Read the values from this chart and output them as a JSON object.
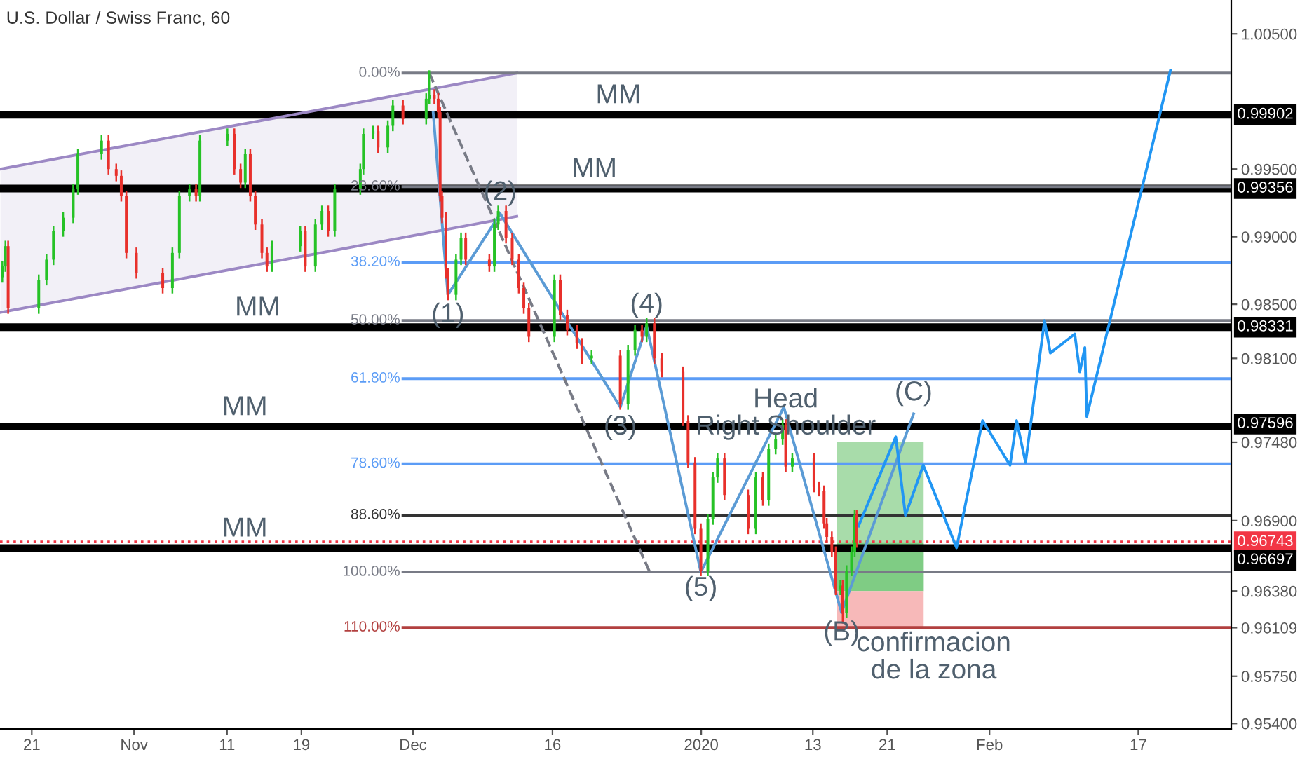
{
  "chart_data": {
    "type": "candlestick",
    "title": "U.S. Dollar / Swiss Franc, 60",
    "grid": false,
    "xlim": [
      "2019-10-17T14:00",
      "2020-02-27"
    ],
    "ylim": [
      0.9536,
      1.0075
    ],
    "xticks": [
      {
        "value": "2019-10-21",
        "label": "21"
      },
      {
        "value": "2019-11-01",
        "label": "Nov"
      },
      {
        "value": "2019-11-11",
        "label": "11"
      },
      {
        "value": "2019-11-19",
        "label": "19"
      },
      {
        "value": "2019-12-01",
        "label": "Dec"
      },
      {
        "value": "2019-12-16",
        "label": "16"
      },
      {
        "value": "2020-01-01",
        "label": "2020"
      },
      {
        "value": "2020-01-13",
        "label": "13"
      },
      {
        "value": "2020-01-21",
        "label": "21"
      },
      {
        "value": "2020-02-01",
        "label": "Feb"
      },
      {
        "value": "2020-02-17",
        "label": "17"
      }
    ],
    "yticks": [
      {
        "value": 1.005,
        "label": "1.00500"
      },
      {
        "value": 0.995,
        "label": "0.99500"
      },
      {
        "value": 0.99,
        "label": "0.99000"
      },
      {
        "value": 0.985,
        "label": "0.98500"
      },
      {
        "value": 0.981,
        "label": "0.98100"
      },
      {
        "value": 0.9748,
        "label": "0.97480"
      },
      {
        "value": 0.969,
        "label": "0.96900"
      },
      {
        "value": 0.9638,
        "label": "0.96380"
      },
      {
        "value": 0.96109,
        "label": "0.96109"
      },
      {
        "value": 0.9575,
        "label": "0.95750"
      },
      {
        "value": 0.954,
        "label": "0.95400"
      }
    ],
    "x": [
      "2019-10-17T20:00",
      "2019-10-18T04:00",
      "2019-10-18T11:00",
      "2019-10-21T18:00",
      "2019-10-22T14:00",
      "2019-10-23T08:00",
      "2019-10-24T09:00",
      "2019-10-25T11:00",
      "2019-10-25T23:00",
      "2019-10-28T12:00",
      "2019-10-29T06:00",
      "2019-10-30T02:00",
      "2019-10-30T15:00",
      "2019-10-31T04:00",
      "2019-11-01T06:00",
      "2019-11-04T02:00",
      "2019-11-05T03:00",
      "2019-11-05T21:00",
      "2019-11-06T23:00",
      "2019-11-07T16:00",
      "2019-11-08T02:00",
      "2019-11-11T01:00",
      "2019-11-11T19:00",
      "2019-11-12T11:00",
      "2019-11-12T23:00",
      "2019-11-13T12:00",
      "2019-11-14T01:00",
      "2019-11-14T18:00",
      "2019-11-15T07:00",
      "2019-11-15T20:00",
      "2019-11-18T21:00",
      "2019-11-19T10:00",
      "2019-11-20T12:00",
      "2019-11-21T05:00",
      "2019-11-21T21:00",
      "2019-11-22T14:00",
      "2019-11-25T08:00",
      "2019-11-25T16:00",
      "2019-11-26T17:00",
      "2019-11-27T06:00",
      "2019-11-28T07:00",
      "2019-11-28T20:00",
      "2019-11-29T22:00",
      "2019-12-02T10:00",
      "2019-12-02T18:00",
      "2019-12-03T07:00",
      "2019-12-03T17:00",
      "2019-12-03T22:00",
      "2019-12-04T03:00",
      "2019-12-04T13:00",
      "2019-12-04T18:00",
      "2019-12-05T15:00",
      "2019-12-06T04:00",
      "2019-12-06T16:00",
      "2019-12-09T05:00",
      "2019-12-09T18:00",
      "2019-12-10T04:00",
      "2019-12-11T00:00",
      "2019-12-11T16:00",
      "2019-12-12T09:00",
      "2019-12-12T22:00",
      "2019-12-13T11:00",
      "2019-12-16T05:00",
      "2019-12-16T20:00",
      "2019-12-17T14:00",
      "2019-12-18T15:00",
      "2019-12-19T04:00",
      "2019-12-20T05:00",
      "2019-12-23T07:00",
      "2019-12-24T03:00",
      "2019-12-24T21:00",
      "2019-12-25T15:00",
      "2019-12-26T03:00",
      "2019-12-26T23:00",
      "2019-12-27T18:00",
      "2019-12-30T01:00",
      "2019-12-30T14:00",
      "2019-12-31T08:00",
      "2019-12-31T23:00",
      "2020-01-01T17:00",
      "2020-01-02T06:00",
      "2020-01-02T18:00",
      "2020-01-03T12:00",
      "2020-01-06T01:00",
      "2020-01-06T21:00",
      "2020-01-07T15:00",
      "2020-01-08T06:00",
      "2020-01-09T00:00",
      "2020-01-09T18:00",
      "2020-01-10T02:00",
      "2020-01-10T19:00",
      "2020-01-13T03:00",
      "2020-01-13T16:00",
      "2020-01-14T05:00",
      "2020-01-14T12:00",
      "2020-01-15T01:00",
      "2020-01-15T11:00",
      "2020-01-15T23:00",
      "2020-01-16T05:00",
      "2020-01-16T15:00",
      "2020-01-17T04:00",
      "2020-01-17T12:00",
      "2020-01-17T17:00"
    ],
    "ohlc": [
      [
        0.987,
        0.9882,
        0.9866,
        0.9878
      ],
      [
        0.9878,
        0.9897,
        0.9874,
        0.9893
      ],
      [
        0.9893,
        0.9897,
        0.9843,
        0.9847
      ],
      [
        0.9847,
        0.9872,
        0.9843,
        0.9868
      ],
      [
        0.9868,
        0.9887,
        0.9864,
        0.9883
      ],
      [
        0.9883,
        0.9908,
        0.9879,
        0.9904
      ],
      [
        0.9904,
        0.9918,
        0.99,
        0.9914
      ],
      [
        0.9914,
        0.9939,
        0.991,
        0.9935
      ],
      [
        0.9935,
        0.9965,
        0.9931,
        0.9961
      ],
      [
        0.9961,
        0.9975,
        0.9957,
        0.9971
      ],
      [
        0.9971,
        0.9975,
        0.9946,
        0.995
      ],
      [
        0.995,
        0.9954,
        0.9941,
        0.9945
      ],
      [
        0.9945,
        0.9949,
        0.9926,
        0.993
      ],
      [
        0.993,
        0.9934,
        0.9884,
        0.9888
      ],
      [
        0.9888,
        0.9892,
        0.9869,
        0.9873
      ],
      [
        0.9873,
        0.9877,
        0.9858,
        0.9862
      ],
      [
        0.9862,
        0.9892,
        0.9858,
        0.9888
      ],
      [
        0.9888,
        0.9934,
        0.9884,
        0.993
      ],
      [
        0.993,
        0.9939,
        0.9926,
        0.9935
      ],
      [
        0.9935,
        0.9939,
        0.9926,
        0.993
      ],
      [
        0.993,
        0.9975,
        0.9926,
        0.9971
      ],
      [
        0.9971,
        0.998,
        0.9967,
        0.9976
      ],
      [
        0.9976,
        0.998,
        0.9946,
        0.995
      ],
      [
        0.995,
        0.9954,
        0.9936,
        0.994
      ],
      [
        0.994,
        0.9965,
        0.9936,
        0.9961
      ],
      [
        0.9961,
        0.9965,
        0.9926,
        0.993
      ],
      [
        0.993,
        0.9934,
        0.9905,
        0.9909
      ],
      [
        0.9909,
        0.9913,
        0.9884,
        0.9888
      ],
      [
        0.9888,
        0.9892,
        0.9874,
        0.9878
      ],
      [
        0.9878,
        0.9897,
        0.9874,
        0.9893
      ],
      [
        0.9893,
        0.9908,
        0.9889,
        0.9904
      ],
      [
        0.9904,
        0.9908,
        0.9874,
        0.9878
      ],
      [
        0.9878,
        0.9913,
        0.9874,
        0.9909
      ],
      [
        0.9909,
        0.9923,
        0.9905,
        0.9919
      ],
      [
        0.9919,
        0.9923,
        0.99,
        0.9904
      ],
      [
        0.9904,
        0.9939,
        0.99,
        0.9935
      ],
      [
        0.9935,
        0.9954,
        0.9931,
        0.995
      ],
      [
        0.995,
        0.998,
        0.9946,
        0.9976
      ],
      [
        0.9976,
        0.9982,
        0.9972,
        0.9978
      ],
      [
        0.9978,
        0.9982,
        0.9962,
        0.9966
      ],
      [
        0.9966,
        0.9986,
        0.9962,
        0.9982
      ],
      [
        0.9982,
        1.0001,
        0.9978,
        0.9997
      ],
      [
        0.9997,
        1.0001,
        0.9983,
        0.9987
      ],
      [
        0.9987,
        1.0006,
        0.9983,
        1.0002
      ],
      [
        1.0002,
        1.0023,
        0.9998,
        1.0005
      ],
      [
        1.0005,
        1.0009,
        0.9998,
        1.0002
      ],
      [
        1.0002,
        1.0006,
        0.9988,
        0.9992
      ],
      [
        0.9992,
        0.9996,
        0.9926,
        0.993
      ],
      [
        0.993,
        0.9934,
        0.991,
        0.9914
      ],
      [
        0.9914,
        0.9918,
        0.9869,
        0.9873
      ],
      [
        0.9873,
        0.9877,
        0.9853,
        0.9857
      ],
      [
        0.9857,
        0.9887,
        0.9853,
        0.9883
      ],
      [
        0.9883,
        0.9903,
        0.9879,
        0.9899
      ],
      [
        0.9899,
        0.9903,
        0.9879,
        0.9883
      ],
      [
        0.9883,
        0.9887,
        0.9874,
        0.9878
      ],
      [
        0.9878,
        0.9913,
        0.9874,
        0.9909
      ],
      [
        0.9909,
        0.9923,
        0.9905,
        0.9919
      ],
      [
        0.9919,
        0.9923,
        0.9895,
        0.9899
      ],
      [
        0.9899,
        0.9903,
        0.9879,
        0.9883
      ],
      [
        0.9883,
        0.9887,
        0.9858,
        0.9862
      ],
      [
        0.9862,
        0.9866,
        0.9843,
        0.9847
      ],
      [
        0.9847,
        0.9851,
        0.9822,
        0.9826
      ],
      [
        0.9826,
        0.9872,
        0.9822,
        0.9868
      ],
      [
        0.9868,
        0.9872,
        0.9838,
        0.9842
      ],
      [
        0.9842,
        0.9846,
        0.9827,
        0.9831
      ],
      [
        0.9831,
        0.9835,
        0.9817,
        0.9821
      ],
      [
        0.9821,
        0.9825,
        0.9806,
        0.981
      ],
      [
        0.981,
        0.9816,
        0.9806,
        0.9812
      ],
      [
        0.9812,
        0.9816,
        0.9772,
        0.9776
      ],
      [
        0.9776,
        0.982,
        0.9772,
        0.9816
      ],
      [
        0.9816,
        0.9835,
        0.9812,
        0.9831
      ],
      [
        0.9831,
        0.9835,
        0.9822,
        0.9826
      ],
      [
        0.9826,
        0.984,
        0.9822,
        0.9836
      ],
      [
        0.9836,
        0.984,
        0.9806,
        0.981
      ],
      [
        0.981,
        0.9814,
        0.9796,
        0.98
      ],
      [
        0.98,
        0.9804,
        0.976,
        0.9764
      ],
      [
        0.9764,
        0.9768,
        0.9729,
        0.9733
      ],
      [
        0.9733,
        0.9737,
        0.968,
        0.9684
      ],
      [
        0.9684,
        0.9688,
        0.9649,
        0.9653
      ],
      [
        0.9653,
        0.9695,
        0.9649,
        0.9691
      ],
      [
        0.9691,
        0.9726,
        0.9687,
        0.9722
      ],
      [
        0.9722,
        0.974,
        0.9718,
        0.9736
      ],
      [
        0.9736,
        0.974,
        0.9705,
        0.9709
      ],
      [
        0.9709,
        0.9713,
        0.968,
        0.9684
      ],
      [
        0.9684,
        0.9726,
        0.968,
        0.9722
      ],
      [
        0.9722,
        0.9726,
        0.9701,
        0.9705
      ],
      [
        0.9705,
        0.9747,
        0.9701,
        0.9743
      ],
      [
        0.9743,
        0.9754,
        0.9739,
        0.975
      ],
      [
        0.975,
        0.9765,
        0.9746,
        0.9761
      ],
      [
        0.9761,
        0.9765,
        0.9726,
        0.973
      ],
      [
        0.973,
        0.974,
        0.9726,
        0.9736
      ],
      [
        0.9736,
        0.974,
        0.9711,
        0.9715
      ],
      [
        0.9715,
        0.9719,
        0.9708,
        0.9712
      ],
      [
        0.9712,
        0.9716,
        0.9684,
        0.9688
      ],
      [
        0.9688,
        0.9692,
        0.9674,
        0.9678
      ],
      [
        0.9678,
        0.9682,
        0.9663,
        0.9667
      ],
      [
        0.9667,
        0.9671,
        0.9635,
        0.9639
      ],
      [
        0.9639,
        0.9646,
        0.9635,
        0.9642
      ],
      [
        0.9642,
        0.9646,
        0.9614,
        0.9622
      ],
      [
        0.9622,
        0.9657,
        0.9618,
        0.9653
      ],
      [
        0.9653,
        0.9671,
        0.9649,
        0.9667
      ],
      [
        0.9667,
        0.9698,
        0.9663,
        0.9694
      ],
      [
        0.9694,
        0.9698,
        0.967,
        0.9674
      ]
    ],
    "colors": [
      "#26c226",
      "#26c226",
      "#e8302b",
      "#26c226",
      "#26c226",
      "#26c226",
      "#26c226",
      "#26c226",
      "#26c226",
      "#26c226",
      "#e8302b",
      "#e8302b",
      "#e8302b",
      "#e8302b",
      "#e8302b",
      "#e8302b",
      "#26c226",
      "#26c226",
      "#26c226",
      "#e8302b",
      "#26c226",
      "#26c226",
      "#e8302b",
      "#e8302b",
      "#26c226",
      "#e8302b",
      "#e8302b",
      "#e8302b",
      "#e8302b",
      "#26c226",
      "#26c226",
      "#e8302b",
      "#26c226",
      "#26c226",
      "#e8302b",
      "#26c226",
      "#26c226",
      "#26c226",
      "#26c226",
      "#e8302b",
      "#26c226",
      "#26c226",
      "#e8302b",
      "#26c226",
      "#26c226",
      "#e8302b",
      "#e8302b",
      "#e8302b",
      "#e8302b",
      "#e8302b",
      "#e8302b",
      "#26c226",
      "#26c226",
      "#e8302b",
      "#e8302b",
      "#26c226",
      "#26c226",
      "#e8302b",
      "#e8302b",
      "#e8302b",
      "#e8302b",
      "#e8302b",
      "#26c226",
      "#e8302b",
      "#e8302b",
      "#e8302b",
      "#e8302b",
      "#26c226",
      "#e8302b",
      "#26c226",
      "#26c226",
      "#e8302b",
      "#26c226",
      "#e8302b",
      "#e8302b",
      "#e8302b",
      "#e8302b",
      "#e8302b",
      "#e8302b",
      "#26c226",
      "#26c226",
      "#26c226",
      "#e8302b",
      "#e8302b",
      "#26c226",
      "#e8302b",
      "#26c226",
      "#26c226",
      "#26c226",
      "#e8302b",
      "#26c226",
      "#e8302b",
      "#e8302b",
      "#e8302b",
      "#e8302b",
      "#e8302b",
      "#e8302b",
      "#26c226",
      "#e8302b",
      "#26c226",
      "#26c226",
      "#26c226",
      "#e8302b"
    ],
    "series": [
      {
        "type": "line",
        "color": "#9c88c4",
        "x": [
          "2019-10-17T15:00",
          "2019-12-12T04:00"
        ],
        "values": [
          0.995,
          1.0021
        ],
        "lower": [
          0.9844,
          0.9915
        ],
        "upper": [
          0.995,
          1.0021
        ]
      },
      {
        "type": "line",
        "color": "#9c88c4",
        "x": [
          "2019-10-17T15:00",
          "2019-12-12T04:00"
        ],
        "values": [
          0.9844,
          0.9915
        ]
      },
      {
        "type": "bar",
        "color": "#a8dcaa",
        "x": [
          "2020-01-20T06:00"
        ],
        "base": [
          0.9638
        ],
        "values": [
          0.011
        ]
      },
      {
        "type": "bar",
        "color": "#7fcc84",
        "x": [
          "2020-01-20T06:00"
        ],
        "base": [
          0.9638
        ],
        "values": [
          0.0036
        ]
      },
      {
        "type": "bar",
        "color": "#f7b9b9",
        "x": [
          "2020-01-20T06:00"
        ],
        "base": [
          0.9611
        ],
        "values": [
          0.0027
        ]
      },
      {
        "type": "line",
        "name": "0.00%",
        "color": "#787b86",
        "x": [
          "2019-11-29T22:00",
          "2020-02-27"
        ],
        "values": [
          1.0021,
          1.0021
        ]
      },
      {
        "type": "line",
        "name": "23.60%",
        "color": "#787b86",
        "x": [
          "2019-11-29T22:00",
          "2020-02-27"
        ],
        "values": [
          0.9937,
          0.9937
        ]
      },
      {
        "type": "line",
        "name": "38.20%",
        "color": "#5b9cf6",
        "x": [
          "2019-11-29T22:00",
          "2020-02-27"
        ],
        "values": [
          0.9881,
          0.9881
        ]
      },
      {
        "type": "line",
        "name": "50.00%",
        "color": "#787b86",
        "x": [
          "2019-11-29T22:00",
          "2020-02-27"
        ],
        "values": [
          0.9838,
          0.9838
        ]
      },
      {
        "type": "line",
        "name": "61.80%",
        "color": "#5b9cf6",
        "x": [
          "2019-11-29T22:00",
          "2020-02-27"
        ],
        "values": [
          0.9795,
          0.9795
        ]
      },
      {
        "type": "line",
        "name": "78.60%",
        "color": "#5b9cf6",
        "x": [
          "2019-11-29T22:00",
          "2020-02-27"
        ],
        "values": [
          0.9732,
          0.9732
        ]
      },
      {
        "type": "line",
        "name": "88.60%",
        "color": "#333333",
        "x": [
          "2019-11-29T22:00",
          "2020-02-27"
        ],
        "values": [
          0.9694,
          0.9694
        ]
      },
      {
        "type": "line",
        "name": "100.00%",
        "color": "#787b86",
        "x": [
          "2019-11-29T22:00",
          "2020-02-27"
        ],
        "values": [
          0.9652,
          0.9652
        ]
      },
      {
        "type": "line",
        "name": "110.00%",
        "color": "#b2403f",
        "x": [
          "2019-11-29T22:00",
          "2020-02-27"
        ],
        "values": [
          0.9611,
          0.9611
        ]
      },
      {
        "type": "line",
        "color": "#787b86",
        "line_style": "dashed",
        "x": [
          "2019-12-02T18:00",
          "2019-12-26T11:00"
        ],
        "values": [
          1.0021,
          0.9652
        ]
      },
      {
        "type": "line",
        "color": "#5b9bd5",
        "x": [
          "2019-12-03T04:00",
          "2019-12-04T18:00",
          "2019-12-10T09:00",
          "2019-12-23T07:00",
          "2019-12-26T03:00",
          "2019-12-31T23:00",
          "2020-01-09T21:00",
          "2020-01-16T02:00",
          "2020-01-23T20:00"
        ],
        "values": [
          0.9992,
          0.9857,
          0.9917,
          0.9774,
          0.9834,
          0.9652,
          0.9774,
          0.9622,
          0.9769
        ]
      },
      {
        "type": "line",
        "color": "#2196f3",
        "x": [
          "2020-01-17T22:00",
          "2020-01-21T22:00",
          "2020-01-22T23:00",
          "2020-01-24T21:00",
          "2020-01-28T11:00",
          "2020-01-31T06:00",
          "2020-02-03T05:00",
          "2020-02-03T22:00",
          "2020-02-04T21:00",
          "2020-02-06T22:00",
          "2020-02-07T13:00",
          "2020-02-10T04:00",
          "2020-02-10T17:00",
          "2020-02-11T06:00",
          "2020-02-11T11:00",
          "2020-02-20T11:00"
        ],
        "values": [
          0.9686,
          0.9752,
          0.9694,
          0.9731,
          0.967,
          0.9764,
          0.9731,
          0.9764,
          0.9733,
          0.9838,
          0.9814,
          0.9828,
          0.98,
          0.9818,
          0.9767,
          1.0023
        ]
      }
    ],
    "ref_lines": [
      {
        "axis": "y",
        "value": 0.99902,
        "label": "0.99902",
        "color": "#000000",
        "line_style": "solid"
      },
      {
        "axis": "y",
        "value": 0.99356,
        "label": "0.99356",
        "color": "#000000",
        "line_style": "solid"
      },
      {
        "axis": "y",
        "value": 0.98331,
        "label": "0.98331",
        "color": "#000000",
        "line_style": "solid"
      },
      {
        "axis": "y",
        "value": 0.97596,
        "label": "0.97596",
        "color": "#000000",
        "line_style": "solid"
      },
      {
        "axis": "y",
        "value": 0.96743,
        "label": "0.96743",
        "color": "#f23645",
        "line_style": "dotted"
      },
      {
        "axis": "y",
        "value": 0.96697,
        "label": "0.96697",
        "color": "#000000",
        "line_style": "solid"
      }
    ],
    "annotations": [
      {
        "text": "MM",
        "x": "2019-12-23T02:00",
        "y": 0.99902
      },
      {
        "text": "MM",
        "x": "2019-12-20T12:00",
        "y": 0.99356
      },
      {
        "text": "MM",
        "x": "2019-11-14T07:00",
        "y": 0.98331
      },
      {
        "text": "MM",
        "x": "2019-11-12T22:00",
        "y": 0.97596
      },
      {
        "text": "MM",
        "x": "2019-11-12T22:00",
        "y": 0.96697
      },
      {
        "text": "(1)",
        "x": "2019-12-04T18:00",
        "y": 0.9857
      },
      {
        "text": "(2)",
        "x": "2019-12-10T09:00",
        "y": 0.9917
      },
      {
        "text": "(3)",
        "x": "2019-12-23T07:00",
        "y": 0.9774
      },
      {
        "text": "(4)",
        "x": "2019-12-26T03:00",
        "y": 0.9834
      },
      {
        "text": "(5)",
        "x": "2019-12-31T23:00",
        "y": 0.9652
      },
      {
        "text": "Head",
        "x": "2020-01-10T02:00",
        "y": 0.9779
      },
      {
        "text": "Right Shoulder",
        "x": "2020-01-10T02:00",
        "y": 0.9759
      },
      {
        "text": "(B)",
        "x": "2020-01-16T02:00",
        "y": 0.9622
      },
      {
        "text": "(C)",
        "x": "2020-01-23T20:00",
        "y": 0.9769
      },
      {
        "text": "confirmacion\nde la zona",
        "x": "2020-01-26T00:00",
        "y": 0.9611
      }
    ]
  }
}
